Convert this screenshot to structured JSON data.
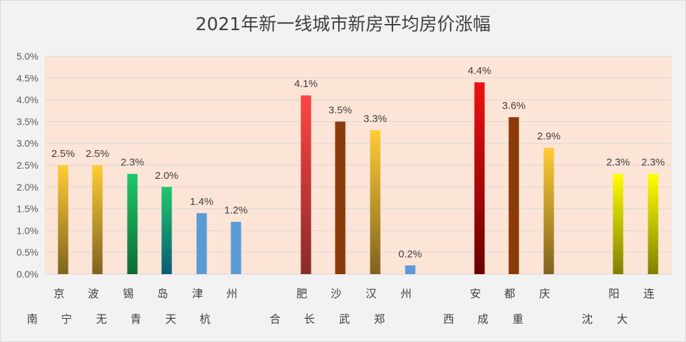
{
  "chart_data": {
    "type": "bar",
    "title": "2021年新一线城市新房平均房价涨幅",
    "yticks": [
      "0.0%",
      "0.5%",
      "1.0%",
      "1.5%",
      "2.0%",
      "2.5%",
      "3.0%",
      "3.5%",
      "4.0%",
      "4.5%",
      "5.0%"
    ],
    "ylim": [
      0,
      5.0
    ],
    "grid": true,
    "categories": [
      {
        "label": [
          "南",
          "京"
        ],
        "value": 2.5,
        "value_label": "2.5%",
        "gradient": [
          "#ffcc33",
          "#7f6320"
        ]
      },
      {
        "label": [
          "宁",
          "波"
        ],
        "value": 2.5,
        "value_label": "2.5%",
        "gradient": [
          "#ffcc33",
          "#7f6320"
        ]
      },
      {
        "label": [
          "无",
          "锡"
        ],
        "value": 2.3,
        "value_label": "2.3%",
        "gradient": [
          "#1ec86a",
          "#0e6a35"
        ]
      },
      {
        "label": [
          "青",
          "岛"
        ],
        "value": 2.0,
        "value_label": "2.0%",
        "gradient": [
          "#1ec86a",
          "#0b5b78"
        ]
      },
      {
        "label": [
          "天",
          "津"
        ],
        "value": 1.4,
        "value_label": "1.4%",
        "gradient": [
          "#5b9bd5",
          "#5b9bd5"
        ]
      },
      {
        "label": [
          "杭",
          "州"
        ],
        "value": 1.2,
        "value_label": "1.2%",
        "gradient": [
          "#5b9bd5",
          "#5b9bd5"
        ]
      },
      {
        "label": [
          "合",
          "肥"
        ],
        "value": 4.1,
        "value_label": "4.1%",
        "gradient": [
          "#ff4444",
          "#8b2a2a"
        ]
      },
      {
        "label": [
          "长",
          "沙"
        ],
        "value": 3.5,
        "value_label": "3.5%",
        "gradient": [
          "#8b3a0a",
          "#8b3a0a"
        ]
      },
      {
        "label": [
          "武",
          "汉"
        ],
        "value": 3.3,
        "value_label": "3.3%",
        "gradient": [
          "#ffcc33",
          "#7f6320"
        ]
      },
      {
        "label": [
          "郑",
          "州"
        ],
        "value": 0.2,
        "value_label": "0.2%",
        "gradient": [
          "#5b9bd5",
          "#5b9bd5"
        ]
      },
      {
        "label": [
          "西",
          "安"
        ],
        "value": 4.4,
        "value_label": "4.4%",
        "gradient": [
          "#ee1111",
          "#6a0000"
        ]
      },
      {
        "label": [
          "成",
          "都"
        ],
        "value": 3.6,
        "value_label": "3.6%",
        "gradient": [
          "#8b3a0a",
          "#8b3a0a"
        ]
      },
      {
        "label": [
          "重",
          "庆"
        ],
        "value": 2.9,
        "value_label": "2.9%",
        "gradient": [
          "#ffcc33",
          "#7f6320"
        ]
      },
      {
        "label": [
          "沈",
          "阳"
        ],
        "value": 2.3,
        "value_label": "2.3%",
        "gradient": [
          "#ffff00",
          "#7f8000"
        ]
      },
      {
        "label": [
          "大",
          "连"
        ],
        "value": 2.3,
        "value_label": "2.3%",
        "gradient": [
          "#ffff00",
          "#7f8000"
        ]
      }
    ],
    "colors": {
      "plot_background": "#fce4d6",
      "grid": "#d9d9d9",
      "tick_text": "#595959",
      "label_text": "#404040"
    }
  }
}
